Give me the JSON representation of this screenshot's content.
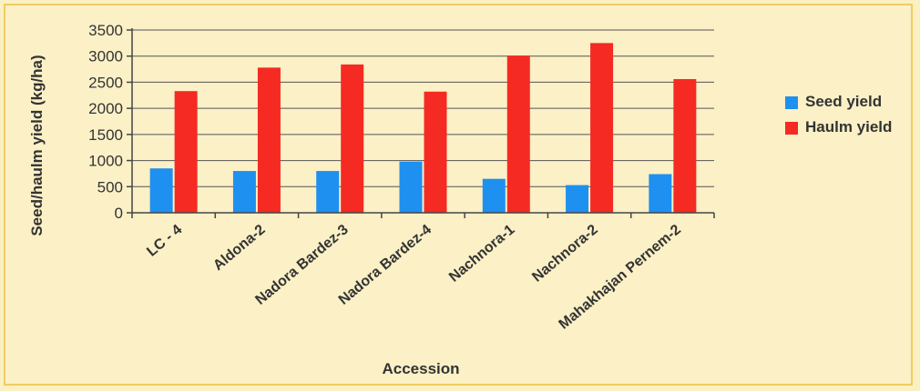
{
  "chart_data": {
    "type": "bar",
    "title": "",
    "xlabel": "Accession",
    "ylabel": "Seed/haulm yield (kg/ha)",
    "ylim": [
      0,
      3500
    ],
    "yticks": [
      0,
      500,
      1000,
      1500,
      2000,
      2500,
      3000,
      3500
    ],
    "grid": true,
    "legend_position": "right",
    "categories": [
      "LC - 4",
      "Aldona-2",
      "Nadora Bardez-3",
      "Nadora Bardez-4",
      "Nachnora-1",
      "Nachnora-2",
      "Mahakhajan Pernem-2"
    ],
    "series": [
      {
        "name": "Seed yield",
        "color": "#1e90f0",
        "values": [
          850,
          800,
          800,
          980,
          650,
          530,
          740
        ]
      },
      {
        "name": "Haulm yield",
        "color": "#f52a22",
        "values": [
          2330,
          2780,
          2840,
          2320,
          3010,
          3250,
          2560
        ]
      }
    ]
  }
}
